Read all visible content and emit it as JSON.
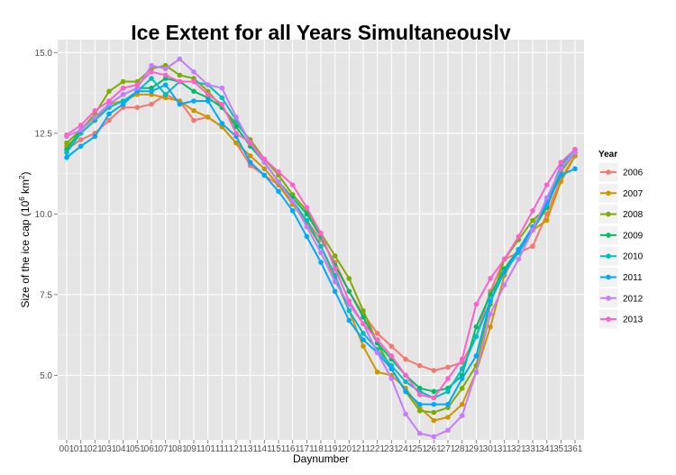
{
  "chart_data": {
    "type": "line",
    "title": "Ice Extent for all Years Simultaneously",
    "xlabel": "Daynumber",
    "ylabel_main": "Size of the ice cap (10",
    "ylabel_sup1": "6",
    "ylabel_mid": " km",
    "ylabel_sup2": "2",
    "ylabel_end": ")",
    "categories": [
      "001",
      "011",
      "021",
      "031",
      "041",
      "051",
      "061",
      "071",
      "081",
      "091",
      "101",
      "111",
      "121",
      "131",
      "141",
      "151",
      "161",
      "171",
      "181",
      "191",
      "201",
      "211",
      "221",
      "231",
      "241",
      "251",
      "261",
      "271",
      "281",
      "291",
      "301",
      "311",
      "321",
      "331",
      "341",
      "351",
      "361"
    ],
    "y_ticks": [
      5.0,
      7.5,
      10.0,
      12.5,
      15.0
    ],
    "y_tick_labels": [
      "5.0",
      "7.5",
      "10.0",
      "12.5",
      "15.0"
    ],
    "ylim": [
      3.0,
      15.4
    ],
    "grid": true,
    "legend": {
      "title": "Year",
      "position": "right"
    },
    "series": [
      {
        "name": "2006",
        "color": "#F8766D",
        "values": [
          12.0,
          12.3,
          12.5,
          12.9,
          13.3,
          13.3,
          13.4,
          13.7,
          13.5,
          12.9,
          13.0,
          12.7,
          12.2,
          11.5,
          11.2,
          10.9,
          10.3,
          9.8,
          9.2,
          8.5,
          7.6,
          6.9,
          6.3,
          5.9,
          5.5,
          5.3,
          5.15,
          5.25,
          5.4,
          6.2,
          7.6,
          8.6,
          8.8,
          9.0,
          10.0,
          11.1,
          11.8
        ]
      },
      {
        "name": "2007",
        "color": "#CD9600",
        "values": [
          12.1,
          12.5,
          12.9,
          13.4,
          13.5,
          13.7,
          13.7,
          13.6,
          13.5,
          13.2,
          13.0,
          12.7,
          12.2,
          11.8,
          11.4,
          10.9,
          10.3,
          9.7,
          9.0,
          8.0,
          7.0,
          5.9,
          5.1,
          5.0,
          4.6,
          4.0,
          3.6,
          3.7,
          4.1,
          5.1,
          6.5,
          8.1,
          8.9,
          9.5,
          9.8,
          11.0,
          11.8
        ]
      },
      {
        "name": "2008",
        "color": "#7CAE00",
        "values": [
          12.2,
          12.6,
          13.1,
          13.8,
          14.1,
          14.1,
          14.5,
          14.6,
          14.3,
          14.2,
          13.8,
          13.3,
          12.8,
          12.3,
          11.7,
          11.2,
          10.6,
          10.1,
          9.4,
          8.7,
          8.0,
          7.0,
          6.0,
          5.2,
          4.5,
          3.9,
          3.85,
          4.0,
          4.6,
          5.3,
          7.2,
          8.6,
          9.2,
          9.8,
          10.2,
          11.3,
          11.9
        ]
      },
      {
        "name": "2009",
        "color": "#00BE67",
        "values": [
          12.0,
          12.6,
          13.0,
          13.4,
          13.7,
          13.9,
          13.9,
          14.2,
          14.1,
          13.8,
          13.6,
          13.3,
          12.7,
          12.1,
          11.6,
          11.0,
          10.5,
          10.0,
          9.3,
          8.4,
          7.6,
          6.8,
          6.0,
          5.5,
          5.0,
          4.6,
          4.5,
          4.6,
          5.0,
          6.5,
          7.5,
          8.3,
          8.9,
          9.5,
          10.2,
          11.4,
          11.9
        ]
      },
      {
        "name": "2010",
        "color": "#00BFC4",
        "values": [
          11.9,
          12.5,
          12.9,
          13.3,
          13.5,
          13.8,
          14.2,
          13.7,
          14.1,
          14.1,
          14.0,
          13.6,
          12.9,
          12.2,
          11.6,
          11.0,
          10.4,
          9.8,
          9.0,
          8.1,
          7.0,
          6.3,
          5.8,
          5.3,
          4.8,
          4.5,
          4.3,
          4.5,
          5.2,
          6.2,
          7.3,
          8.2,
          8.8,
          9.5,
          10.4,
          11.5,
          12.0
        ]
      },
      {
        "name": "2011",
        "color": "#00A9FF",
        "values": [
          11.75,
          12.1,
          12.4,
          13.1,
          13.4,
          13.8,
          13.8,
          14.0,
          13.4,
          13.5,
          13.5,
          12.8,
          12.4,
          11.6,
          11.2,
          10.7,
          10.1,
          9.3,
          8.5,
          7.6,
          6.7,
          6.1,
          5.7,
          5.2,
          4.5,
          4.1,
          4.1,
          4.1,
          4.9,
          5.6,
          7.3,
          8.2,
          8.9,
          9.6,
          10.3,
          11.2,
          11.4
        ]
      },
      {
        "name": "2012",
        "color": "#C77CFF",
        "values": [
          12.4,
          12.6,
          13.0,
          13.4,
          13.7,
          13.9,
          14.6,
          14.5,
          14.8,
          14.4,
          14.0,
          13.9,
          13.0,
          12.2,
          11.6,
          11.0,
          10.4,
          9.6,
          8.8,
          7.9,
          7.2,
          6.6,
          5.7,
          4.9,
          3.8,
          3.2,
          3.1,
          3.3,
          3.75,
          5.1,
          6.9,
          7.8,
          8.6,
          9.5,
          10.5,
          11.4,
          11.9
        ]
      },
      {
        "name": "2013",
        "color": "#FF61CC",
        "values": [
          12.45,
          12.75,
          13.2,
          13.5,
          13.9,
          14.0,
          14.4,
          14.3,
          14.1,
          14.1,
          13.7,
          13.4,
          12.5,
          12.2,
          11.7,
          11.3,
          10.9,
          10.2,
          9.4,
          8.3,
          7.3,
          6.6,
          6.1,
          5.6,
          5.0,
          4.4,
          4.3,
          4.9,
          5.5,
          7.2,
          8.0,
          8.6,
          9.3,
          10.1,
          10.9,
          11.6,
          12.0
        ]
      }
    ]
  }
}
